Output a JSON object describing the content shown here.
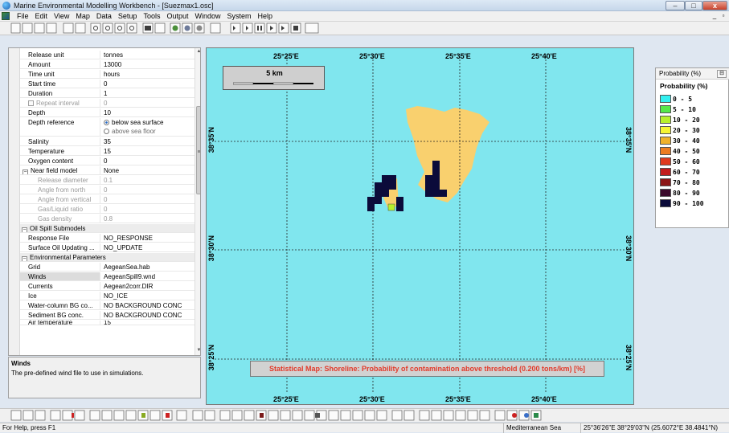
{
  "window": {
    "title": "Marine Environmental Modelling Workbench - [Suezmax1.osc]",
    "minimize_glyph": "–",
    "maximize_glyph": "□",
    "close_glyph": "x",
    "doc_minimize_glyph": "_",
    "doc_restore_glyph": "▫"
  },
  "menu": [
    "File",
    "Edit",
    "View",
    "Map",
    "Data",
    "Setup",
    "Tools",
    "Output",
    "Window",
    "System",
    "Help"
  ],
  "properties": {
    "rows": [
      {
        "name": "Release unit",
        "value": "tonnes"
      },
      {
        "name": "Amount",
        "value": "13000"
      },
      {
        "name": "Time unit",
        "value": "hours"
      },
      {
        "name": "Start time",
        "value": "0"
      },
      {
        "name": "Duration",
        "value": "1"
      },
      {
        "name": "Repeat interval",
        "value": "0"
      },
      {
        "name": "Depth",
        "value": "10"
      },
      {
        "name": "Depth reference",
        "value": "below sea surface",
        "value2": "above sea floor"
      },
      {
        "name": "Salinity",
        "value": "35"
      },
      {
        "name": "Temperature",
        "value": "15"
      },
      {
        "name": "Oxygen content",
        "value": "0"
      },
      {
        "name": "Near field model",
        "value": "None"
      },
      {
        "name": "Release diameter",
        "value": "0.1"
      },
      {
        "name": "Angle from north",
        "value": "0"
      },
      {
        "name": "Angle from vertical",
        "value": "0"
      },
      {
        "name": "Gas/Liquid ratio",
        "value": "0"
      },
      {
        "name": "Gas density",
        "value": "0.8"
      },
      {
        "name": "Oil Spill Submodels",
        "value": ""
      },
      {
        "name": "Response File",
        "value": "NO_RESPONSE"
      },
      {
        "name": "Surface Oil Updating ...",
        "value": "NO_UPDATE"
      },
      {
        "name": "Environmental Parameters",
        "value": ""
      },
      {
        "name": "Grid",
        "value": "AegeanSea.hab"
      },
      {
        "name": "Winds",
        "value": "AegeanSpill9.wnd"
      },
      {
        "name": "Currents",
        "value": "Aegean2corr.DIR"
      },
      {
        "name": "Ice",
        "value": "NO_ICE"
      },
      {
        "name": "Water-column BG co...",
        "value": "NO BACKGROUND CONC"
      },
      {
        "name": "Sediment BG conc.",
        "value": "NO BACKGROUND CONC"
      },
      {
        "name": "Air temperature",
        "value": "15"
      }
    ],
    "expander_collapse": "−",
    "scroll_up": "▲",
    "scroll_down": "▼",
    "scroll_mid": "≡"
  },
  "description": {
    "title": "Winds",
    "text": "The pre-defined wind file to use in simulations."
  },
  "map": {
    "lon_labels": [
      "25°25'E",
      "25°30'E",
      "25°35'E",
      "25°40'E"
    ],
    "lat_labels": [
      "38°35'N",
      "38°30'N",
      "38°25'N"
    ],
    "scale_label": "5 km",
    "caption": "Statistical Map: Shoreline: Probability of contamination above threshold (0.200 tons/km) [%]",
    "sea_color": "#80e6ee",
    "land_color": "#f9d06e"
  },
  "legend": {
    "panel_title": "Probability (%)",
    "pin_glyph": "⊟",
    "title": "Probability (%)",
    "items": [
      {
        "label": "0 - 5",
        "color": "#33f0f0"
      },
      {
        "label": "5 - 10",
        "color": "#55e84a"
      },
      {
        "label": "10 - 20",
        "color": "#b8f02c"
      },
      {
        "label": "20 - 30",
        "color": "#f6f535"
      },
      {
        "label": "30 - 40",
        "color": "#f0b22c"
      },
      {
        "label": "40 - 50",
        "color": "#ec7d22"
      },
      {
        "label": "50 - 60",
        "color": "#e03a1e"
      },
      {
        "label": "60 - 70",
        "color": "#c21b1b"
      },
      {
        "label": "70 - 80",
        "color": "#8c1414"
      },
      {
        "label": "80 - 90",
        "color": "#3a0a2a"
      },
      {
        "label": "90 - 100",
        "color": "#0b0b3a"
      }
    ]
  },
  "status": {
    "help": "For Help, press F1",
    "region": "Mediterranean Sea",
    "coords": "25°36'26\"E  38°29'03\"N  (25.6072°E  38.4841°N)"
  }
}
